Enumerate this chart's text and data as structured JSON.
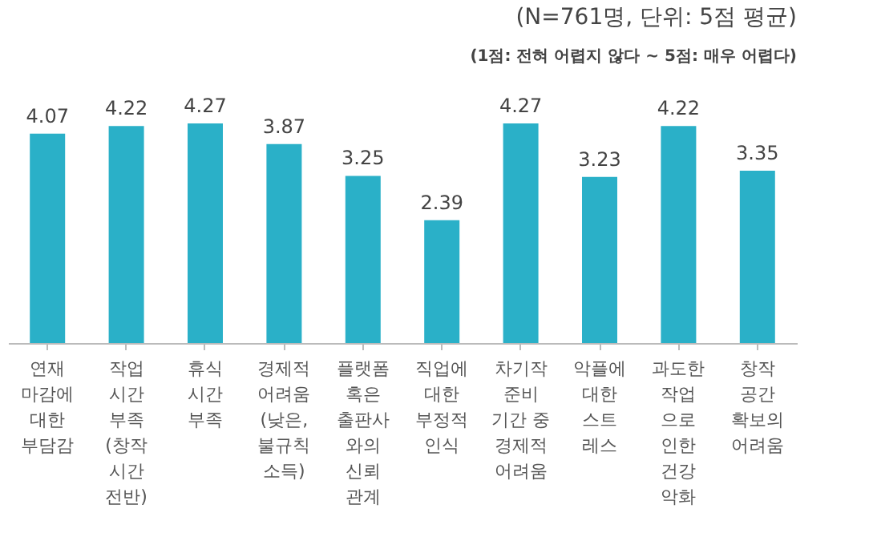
{
  "chart_data": {
    "type": "bar",
    "title": "(N=761명, 단위: 5점 평균)",
    "subtitle": "(1점: 전혀 어렵지 않다 ~ 5점: 매우 어렵다)",
    "categories": [
      "연재\n마감에\n대한\n부담감",
      "작업\n시간\n부족\n(창작\n시간\n전반)",
      "휴식\n시간\n부족",
      "경제적\n어려움\n(낮은,\n불규칙\n소득)",
      "플랫폼\n혹은\n출판사\n와의\n신뢰\n관계",
      "직업에\n대한\n부정적\n인식",
      "차기작\n준비\n기간 중\n경제적\n어려움",
      "악플에\n대한\n스트\n레스",
      "과도한\n작업\n으로\n인한\n건강\n악화",
      "창작\n공간\n확보의\n어려움"
    ],
    "values": [
      4.07,
      4.22,
      4.27,
      3.87,
      3.25,
      2.39,
      4.27,
      3.23,
      4.22,
      3.35
    ],
    "color": "#2ab0c8",
    "data_labels": true,
    "grid": false
  }
}
